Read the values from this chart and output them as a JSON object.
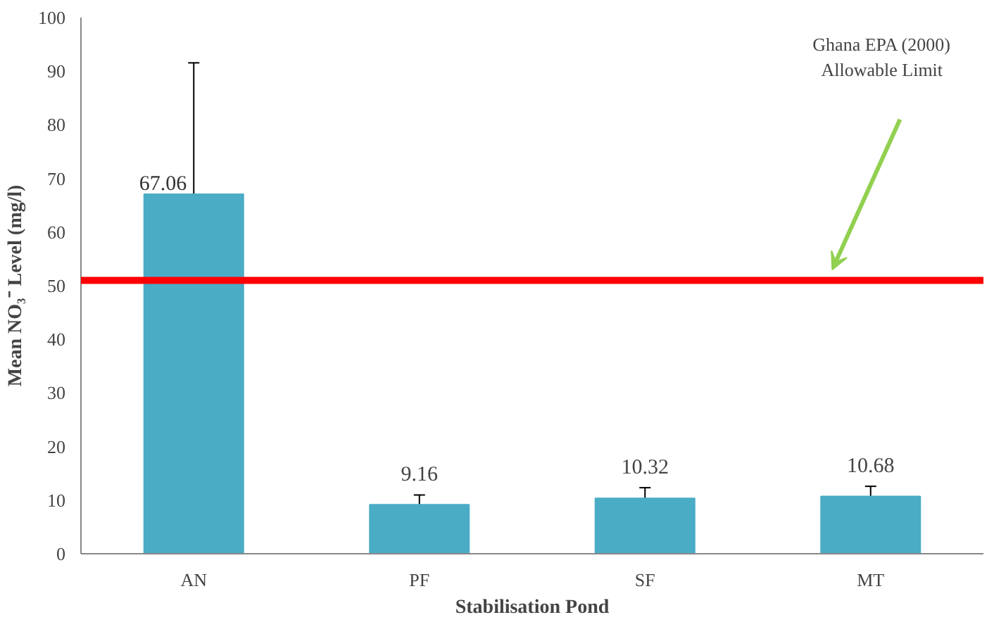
{
  "chart_data": {
    "type": "bar",
    "xlabel": "Stabilisation Pond",
    "ylabel": "Mean NO₃⁻ Level (mg/l)",
    "categories": [
      "AN",
      "PF",
      "SF",
      "MT"
    ],
    "values": [
      67.06,
      9.16,
      10.32,
      10.68
    ],
    "value_labels": [
      "67.06",
      "9.16",
      "10.32",
      "10.68"
    ],
    "errors": [
      24.5,
      1.8,
      2.0,
      1.9
    ],
    "color": "#4bacc6",
    "ylim": [
      0,
      100
    ],
    "yticks": [
      0,
      10,
      20,
      30,
      40,
      50,
      60,
      70,
      80,
      90,
      100
    ],
    "ref_lines": [
      {
        "axis": "y",
        "value": 51,
        "color": "#ff0000"
      }
    ],
    "annotations": [
      "Ghana EPA (2000)\nAllowable Limit"
    ],
    "grid": false
  }
}
